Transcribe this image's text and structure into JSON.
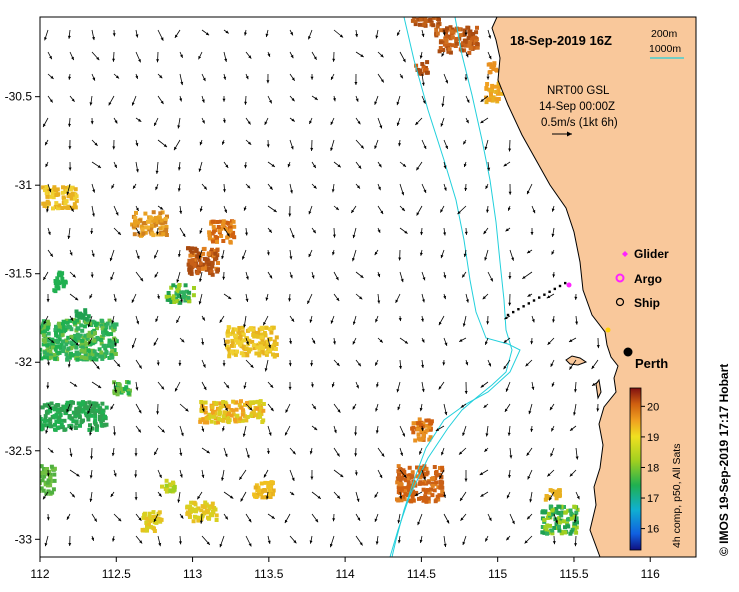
{
  "map": {
    "date_label": "18-Sep-2019 16Z",
    "legend_iso_200": "200m",
    "legend_iso_1000": "1000m",
    "current_source": "NRT00 GSL",
    "current_time": "14-Sep 00:00Z",
    "current_scale": "0.5m/s (1kt 6h)",
    "legend_glider": "Glider",
    "legend_argo": "Argo",
    "legend_ship": "Ship",
    "city": "Perth",
    "credit": "© IMOS 19-Sep-2019 17:17 Hobart",
    "colorbar_label": "4h comp, p50, All Sats",
    "colorbar_ticks": [
      "20",
      "19",
      "18",
      "17",
      "16"
    ],
    "colorbar_tick_values": [
      20,
      19,
      18,
      17,
      16
    ],
    "colorbar_range": [
      15.3,
      20.6
    ],
    "x_ticks": [
      "112",
      "112.5",
      "113",
      "113.5",
      "114",
      "114.5",
      "115",
      "115.5",
      "116"
    ],
    "x_tick_values": [
      112,
      112.5,
      113,
      113.5,
      114,
      114.5,
      115,
      115.5,
      116
    ],
    "y_ticks": [
      "-30.5",
      "-31",
      "-31.5",
      "-32",
      "-32.5",
      "-33"
    ],
    "y_tick_values": [
      -30.5,
      -31,
      -31.5,
      -32,
      -32.5,
      -33
    ],
    "lon_range": [
      112,
      116.3
    ],
    "lat_range": [
      -33.1,
      -30.05
    ],
    "colors": {
      "land": "#f9c89b",
      "isobath": "#22d0dc",
      "glider": "#ff22ff",
      "argo": "#ff22ff",
      "ship": "#000000"
    }
  }
}
